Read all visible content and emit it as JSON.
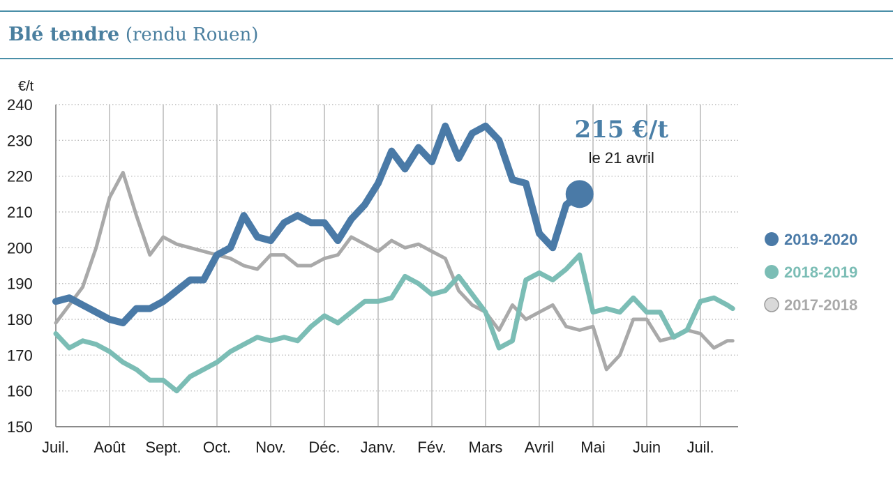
{
  "header": {
    "title_main": "Blé tendre",
    "title_sub": "(rendu Rouen)"
  },
  "colors": {
    "rule": "#4a8fa8",
    "grid": "#bdbdbd",
    "s2019": "#4a7aa7",
    "s2018": "#7bbdb5",
    "s2017": "#a9a9a9"
  },
  "chart_data": {
    "type": "line",
    "title": "Blé tendre (rendu Rouen)",
    "ylabel": "€/t",
    "ylim": [
      150,
      240
    ],
    "yticks": [
      150,
      160,
      170,
      180,
      190,
      200,
      210,
      220,
      230,
      240
    ],
    "xlim": [
      0,
      12.6
    ],
    "categories": [
      "Juil.",
      "Août",
      "Sept.",
      "Oct.",
      "Nov.",
      "Déc.",
      "Janv.",
      "Fév.",
      "Mars",
      "Avril",
      "Mai",
      "Juin",
      "Juil."
    ],
    "grid": "dotted horizontal, solid vertical at months",
    "legend_position": "right",
    "series": [
      {
        "name": "2019-2020",
        "color": "#4a7aa7",
        "x": [
          0,
          0.25,
          0.5,
          0.75,
          1.0,
          1.25,
          1.5,
          1.75,
          2.0,
          2.25,
          2.5,
          2.75,
          3.0,
          3.25,
          3.5,
          3.75,
          4.0,
          4.25,
          4.5,
          4.75,
          5.0,
          5.25,
          5.5,
          5.75,
          6.0,
          6.25,
          6.5,
          6.75,
          7.0,
          7.25,
          7.5,
          7.75,
          8.0,
          8.25,
          8.5,
          8.75,
          9.0,
          9.25,
          9.5,
          9.75
        ],
        "values": [
          185,
          186,
          184,
          182,
          180,
          179,
          183,
          183,
          185,
          188,
          191,
          191,
          198,
          200,
          209,
          203,
          202,
          207,
          209,
          207,
          207,
          202,
          208,
          212,
          218,
          227,
          222,
          228,
          224,
          234,
          225,
          232,
          234,
          230,
          219,
          218,
          204,
          200,
          212,
          215
        ],
        "end_marker": true
      },
      {
        "name": "2018-2019",
        "color": "#7bbdb5",
        "x": [
          0,
          0.25,
          0.5,
          0.75,
          1.0,
          1.25,
          1.5,
          1.75,
          2.0,
          2.25,
          2.5,
          2.75,
          3.0,
          3.25,
          3.5,
          3.75,
          4.0,
          4.25,
          4.5,
          4.75,
          5.0,
          5.25,
          5.5,
          5.75,
          6.0,
          6.25,
          6.5,
          6.75,
          7.0,
          7.25,
          7.5,
          7.75,
          8.0,
          8.25,
          8.5,
          8.75,
          9.0,
          9.25,
          9.5,
          9.75,
          10.0,
          10.25,
          10.5,
          10.75,
          11.0,
          11.25,
          11.5,
          11.75,
          12.0,
          12.25,
          12.5,
          12.6
        ],
        "values": [
          176,
          172,
          174,
          173,
          171,
          168,
          166,
          163,
          163,
          160,
          164,
          166,
          168,
          171,
          173,
          175,
          174,
          175,
          174,
          178,
          181,
          179,
          182,
          185,
          185,
          186,
          192,
          190,
          187,
          188,
          192,
          187,
          182,
          172,
          174,
          191,
          193,
          191,
          194,
          198,
          182,
          183,
          182,
          186,
          182,
          182,
          175,
          177,
          185,
          186,
          184,
          183
        ]
      },
      {
        "name": "2017-2018",
        "color": "#a9a9a9",
        "x": [
          0,
          0.25,
          0.5,
          0.75,
          1.0,
          1.25,
          1.5,
          1.75,
          2.0,
          2.25,
          2.5,
          2.75,
          3.0,
          3.25,
          3.5,
          3.75,
          4.0,
          4.25,
          4.5,
          4.75,
          5.0,
          5.25,
          5.5,
          5.75,
          6.0,
          6.25,
          6.5,
          6.75,
          7.0,
          7.25,
          7.5,
          7.75,
          8.0,
          8.25,
          8.5,
          8.75,
          9.0,
          9.25,
          9.5,
          9.75,
          10.0,
          10.25,
          10.5,
          10.75,
          11.0,
          11.25,
          11.5,
          11.75,
          12.0,
          12.25,
          12.5,
          12.6
        ],
        "values": [
          179,
          184,
          189,
          200,
          214,
          221,
          209,
          198,
          203,
          201,
          200,
          199,
          198,
          197,
          195,
          194,
          198,
          198,
          195,
          195,
          197,
          198,
          203,
          201,
          199,
          202,
          200,
          201,
          199,
          197,
          188,
          184,
          182,
          177,
          184,
          180,
          182,
          184,
          178,
          177,
          178,
          166,
          170,
          180,
          180,
          174,
          175,
          177,
          176,
          172,
          174,
          174
        ]
      }
    ],
    "annotation": {
      "value_text": "215 €/t",
      "date_text": "le 21 avril",
      "x": 9.75,
      "y": 215
    }
  }
}
